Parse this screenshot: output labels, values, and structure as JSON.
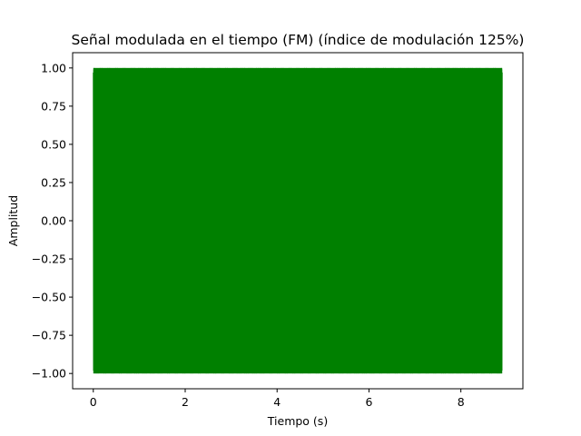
{
  "chart_data": {
    "type": "line",
    "title": "Señal modulada en el tiempo (FM) (índice de modulación 125%)",
    "xlabel": "Tiempo (s)",
    "ylabel": "Amplitud",
    "xlim": [
      -0.45,
      9.35
    ],
    "ylim": [
      -1.1,
      1.1
    ],
    "xticks": [
      0,
      2,
      4,
      6,
      8
    ],
    "xtick_labels": [
      "0",
      "2",
      "4",
      "6",
      "8"
    ],
    "yticks": [
      -1.0,
      -0.75,
      -0.5,
      -0.25,
      0.0,
      0.25,
      0.5,
      0.75,
      1.0
    ],
    "ytick_labels": [
      "−1.00",
      "−0.75",
      "−0.50",
      "−0.25",
      "0.00",
      "0.25",
      "0.50",
      "0.75",
      "1.00"
    ],
    "grid": false,
    "series": [
      {
        "color": "#008000",
        "x_range": [
          0,
          8.9
        ],
        "y_range": [
          -1.0,
          1.0
        ],
        "sample_points": [
          [
            0,
            0
          ],
          [
            0.05,
            1.0
          ],
          [
            0.1,
            -1.0
          ],
          [
            1.0,
            1.0
          ],
          [
            2.0,
            -1.0
          ],
          [
            3.0,
            1.0
          ],
          [
            4.0,
            -1.0
          ],
          [
            5.0,
            1.0
          ],
          [
            6.0,
            -1.0
          ],
          [
            7.0,
            1.0
          ],
          [
            8.0,
            -1.0
          ],
          [
            8.9,
            1.0
          ]
        ]
      }
    ]
  }
}
